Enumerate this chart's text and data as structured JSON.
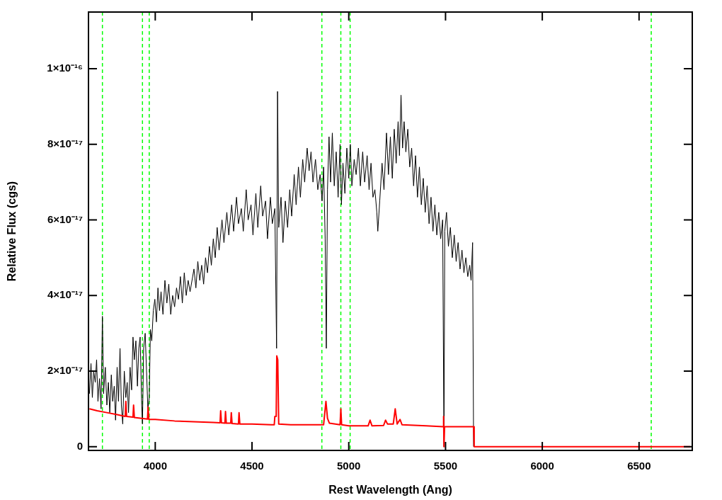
{
  "chart_data": {
    "type": "line",
    "xlabel": "Rest Wavelength (Ang)",
    "ylabel": "Relative Flux (cgs)",
    "xlim": [
      3655,
      6775
    ],
    "ylim": [
      -1e-18,
      1.15e-16
    ],
    "xticks": [
      4000,
      4500,
      5000,
      5500,
      6000,
      6500
    ],
    "yticks": [
      0,
      {
        "value": 2e-17,
        "label": "2×10⁻¹⁷"
      },
      {
        "value": 4e-17,
        "label": "4×10⁻¹⁷"
      },
      {
        "value": 6e-17,
        "label": "6×10⁻¹⁷"
      },
      {
        "value": 8e-17,
        "label": "8×10⁻¹⁷"
      },
      {
        "value": 1e-16,
        "label": "1×10⁻¹⁶"
      }
    ],
    "grid": false,
    "legend": false,
    "marker": "none",
    "line_style": "solid",
    "ref_lines": [
      {
        "axis": "x",
        "value": 3727,
        "color": "#00ff00",
        "line_style": "dashed"
      },
      {
        "axis": "x",
        "value": 3934,
        "color": "#00ff00",
        "line_style": "dashed"
      },
      {
        "axis": "x",
        "value": 3969,
        "color": "#00ff00",
        "line_style": "dashed"
      },
      {
        "axis": "x",
        "value": 4861,
        "color": "#00ff00",
        "line_style": "dashed"
      },
      {
        "axis": "x",
        "value": 4959,
        "color": "#00ff00",
        "line_style": "dashed"
      },
      {
        "axis": "x",
        "value": 5007,
        "color": "#00ff00",
        "line_style": "dashed"
      },
      {
        "axis": "x",
        "value": 6563,
        "color": "#00ff00",
        "line_style": "dashed"
      }
    ],
    "series": [
      {
        "color": "#000000",
        "x": [
          3660,
          3668,
          3675,
          3682,
          3690,
          3697,
          3704,
          3712,
          3720,
          3727,
          3733,
          3742,
          3750,
          3758,
          3765,
          3773,
          3780,
          3788,
          3795,
          3803,
          3810,
          3818,
          3825,
          3832,
          3840,
          3848,
          3855,
          3862,
          3870,
          3878,
          3885,
          3892,
          3900,
          3908,
          3915,
          3922,
          3930,
          3934,
          3940,
          3948,
          3955,
          3962,
          3969,
          3975,
          3982,
          3990,
          3998,
          4006,
          4014,
          4022,
          4030,
          4040,
          4050,
          4060,
          4070,
          4080,
          4090,
          4100,
          4110,
          4120,
          4130,
          4140,
          4150,
          4160,
          4170,
          4180,
          4200,
          4210,
          4220,
          4230,
          4240,
          4250,
          4260,
          4270,
          4280,
          4290,
          4300,
          4310,
          4320,
          4330,
          4345,
          4355,
          4370,
          4380,
          4395,
          4405,
          4420,
          4430,
          4445,
          4455,
          4470,
          4480,
          4495,
          4505,
          4520,
          4530,
          4545,
          4555,
          4570,
          4580,
          4595,
          4605,
          4618,
          4627,
          4632,
          4638,
          4650,
          4660,
          4672,
          4684,
          4695,
          4705,
          4718,
          4728,
          4740,
          4750,
          4762,
          4772,
          4785,
          4795,
          4805,
          4815,
          4828,
          4840,
          4852,
          4862,
          4870,
          4878,
          4884,
          4890,
          4898,
          4906,
          4915,
          4925,
          4935,
          4945,
          4955,
          4962,
          4970,
          4980,
          4990,
          5000,
          5008,
          5016,
          5028,
          5038,
          5050,
          5060,
          5072,
          5082,
          5095,
          5105,
          5115,
          5125,
          5135,
          5145,
          5150,
          5160,
          5172,
          5182,
          5195,
          5205,
          5215,
          5225,
          5235,
          5245,
          5255,
          5262,
          5270,
          5278,
          5286,
          5295,
          5305,
          5315,
          5325,
          5335,
          5345,
          5355,
          5365,
          5375,
          5385,
          5395,
          5405,
          5415,
          5425,
          5435,
          5445,
          5455,
          5465,
          5475,
          5485,
          5492,
          5496,
          5505,
          5515,
          5525,
          5535,
          5545,
          5555,
          5565,
          5575,
          5585,
          5595,
          5605,
          5615,
          5625,
          5632,
          5640,
          5645
        ],
        "values": [
          1.4e-17,
          2.2e-17,
          1.3e-17,
          2e-17,
          1.7e-17,
          2.3e-17,
          1.2e-17,
          1.8e-17,
          1e-17,
          3.45e-17,
          1.4e-17,
          2.1e-17,
          1.1e-17,
          1.7e-17,
          9e-18,
          1.9e-17,
          1.2e-17,
          1.6e-17,
          7e-18,
          2.1e-17,
          1.2e-17,
          2.6e-17,
          1.1e-17,
          6e-18,
          2e-17,
          1.3e-17,
          1.7e-17,
          9e-18,
          2.1e-17,
          1.5e-17,
          2.9e-17,
          2.3e-17,
          2.8e-17,
          1.6e-17,
          2.6e-17,
          2.9e-17,
          1.1e-17,
          6e-18,
          2.6e-17,
          3e-17,
          2e-17,
          1e-17,
          1.3e-17,
          3.1e-17,
          2.8e-17,
          3.6e-17,
          3.9e-17,
          3.3e-17,
          4.2e-17,
          3.6e-17,
          4.1e-17,
          3.5e-17,
          4.4e-17,
          3.8e-17,
          4.3e-17,
          3.5e-17,
          4e-17,
          3.7e-17,
          4.2e-17,
          3.9e-17,
          4.5e-17,
          3.8e-17,
          4.6e-17,
          4e-17,
          4.4e-17,
          4.1e-17,
          4.7e-17,
          4.2e-17,
          4.9e-17,
          4.4e-17,
          4.8e-17,
          4.3e-17,
          5e-17,
          4.6e-17,
          5.3e-17,
          4.8e-17,
          5.5e-17,
          5e-17,
          5.8e-17,
          5.2e-17,
          6e-17,
          5.4e-17,
          6.2e-17,
          5.6e-17,
          6.4e-17,
          5.7e-17,
          6.6e-17,
          5.9e-17,
          6.3e-17,
          5.7e-17,
          6.8e-17,
          6e-17,
          6.4e-17,
          5.6e-17,
          6.7e-17,
          5.8e-17,
          6.9e-17,
          6.1e-17,
          6.5e-17,
          5.5e-17,
          6.6e-17,
          5.9e-17,
          6.3e-17,
          2.6e-17,
          9.4e-17,
          5.8e-17,
          6.6e-17,
          5.4e-17,
          6.5e-17,
          5.8e-17,
          6.8e-17,
          6.1e-17,
          7.2e-17,
          6.4e-17,
          7.4e-17,
          6.6e-17,
          7.6e-17,
          7e-17,
          7.9e-17,
          7.3e-17,
          7.8e-17,
          7e-17,
          7.6e-17,
          6.8e-17,
          7.2e-17,
          6.5e-17,
          7.4e-17,
          5.5e-17,
          2.6e-17,
          6.8e-17,
          8.2e-17,
          7e-17,
          8.3e-17,
          6.9e-17,
          7.8e-17,
          6.6e-17,
          8e-17,
          6.4e-17,
          7.5e-17,
          6.7e-17,
          7.9e-17,
          7.1e-17,
          8e-17,
          6.9e-17,
          7.6e-17,
          7.2e-17,
          7.9e-17,
          6.9e-17,
          7.8e-17,
          7e-17,
          7.7e-17,
          6.8e-17,
          7.5e-17,
          6.6e-17,
          6.8e-17,
          6.2e-17,
          5.7e-17,
          6.5e-17,
          7.5e-17,
          6.8e-17,
          8.3e-17,
          7.2e-17,
          8.2e-17,
          7.1e-17,
          8.4e-17,
          7.5e-17,
          8.6e-17,
          7.7e-17,
          9.3e-17,
          7.9e-17,
          8.6e-17,
          7.8e-17,
          8.4e-17,
          7.4e-17,
          7.9e-17,
          6.9e-17,
          7.7e-17,
          6.6e-17,
          7.4e-17,
          6.4e-17,
          7.1e-17,
          6.2e-17,
          6.9e-17,
          5.9e-17,
          6.6e-17,
          5.7e-17,
          6.4e-17,
          5.6e-17,
          6.2e-17,
          5.5e-17,
          6e-17,
          0,
          5.7e-17,
          6.2e-17,
          5.3e-17,
          5.8e-17,
          5e-17,
          5.6e-17,
          4.9e-17,
          5.4e-17,
          4.7e-17,
          5.2e-17,
          4.6e-17,
          5e-17,
          4.5e-17,
          4.8e-17,
          4.4e-17,
          5.4e-17,
          0
        ]
      },
      {
        "color": "#ff0000",
        "x": [
          3660,
          3700,
          3750,
          3800,
          3845,
          3848,
          3852,
          3885,
          3888,
          3892,
          3960,
          3963,
          3967,
          4000,
          4100,
          4200,
          4300,
          4335,
          4338,
          4342,
          4360,
          4363,
          4367,
          4390,
          4393,
          4397,
          4430,
          4433,
          4437,
          4500,
          4600,
          4615,
          4618,
          4625,
          4628,
          4633,
          4638,
          4700,
          4800,
          4870,
          4882,
          4890,
          4900,
          4955,
          4959,
          4963,
          5000,
          5100,
          5110,
          5120,
          5180,
          5190,
          5200,
          5230,
          5240,
          5250,
          5265,
          5275,
          5400,
          5488,
          5490,
          5492,
          5495,
          5645,
          5648,
          6765
        ],
        "values": [
          1e-17,
          9.5e-18,
          9e-18,
          8.5e-18,
          8e-18,
          1.2e-17,
          8e-18,
          7.8e-18,
          1.1e-17,
          7.7e-18,
          7.3e-18,
          1.05e-17,
          7.2e-18,
          7.2e-18,
          6.8e-18,
          6.6e-18,
          6.4e-18,
          6.3e-18,
          9.5e-18,
          6.3e-18,
          6.2e-18,
          9.3e-18,
          6.2e-18,
          6.2e-18,
          9e-18,
          6.1e-18,
          6e-18,
          9e-18,
          6e-18,
          6e-18,
          5.8e-18,
          5.8e-18,
          8e-18,
          8e-18,
          2.4e-17,
          2.3e-17,
          6e-18,
          5.8e-18,
          5.8e-18,
          5.8e-18,
          1.2e-17,
          7.5e-18,
          6.2e-18,
          5.8e-18,
          1e-17,
          5.8e-18,
          5.5e-18,
          5.5e-18,
          7e-18,
          5.5e-18,
          5.6e-18,
          7e-18,
          6e-18,
          6e-18,
          1e-17,
          6e-18,
          7.2e-18,
          5.8e-18,
          5.5e-18,
          5.3e-18,
          8e-18,
          0,
          5.3e-18,
          5.3e-18,
          0,
          0
        ]
      }
    ]
  }
}
